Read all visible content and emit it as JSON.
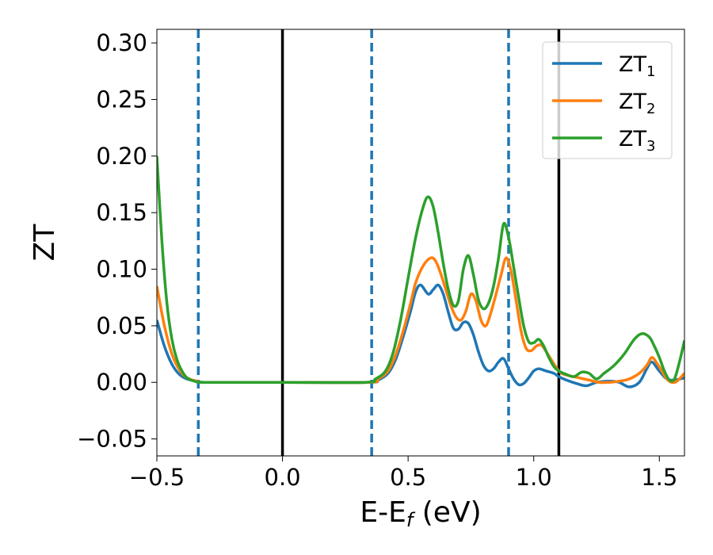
{
  "chart_data": {
    "type": "line",
    "title": "",
    "xlabel": "E-E",
    "xlabel_sub": "f",
    "xlabel_unit": " (eV)",
    "ylabel": "ZT",
    "xlim": [
      -0.5,
      1.6
    ],
    "ylim": [
      -0.065,
      0.312
    ],
    "xticks": [
      {
        "value": -0.5,
        "label": "−0.5"
      },
      {
        "value": 0.0,
        "label": "0.0"
      },
      {
        "value": 0.5,
        "label": "0.5"
      },
      {
        "value": 1.0,
        "label": "1.0"
      },
      {
        "value": 1.5,
        "label": "1.5"
      }
    ],
    "yticks": [
      {
        "value": -0.05,
        "label": "−0.05"
      },
      {
        "value": 0.0,
        "label": "0.00"
      },
      {
        "value": 0.05,
        "label": "0.05"
      },
      {
        "value": 0.1,
        "label": "0.10"
      },
      {
        "value": 0.15,
        "label": "0.15"
      },
      {
        "value": 0.2,
        "label": "0.20"
      },
      {
        "value": 0.25,
        "label": "0.25"
      },
      {
        "value": 0.3,
        "label": "0.30"
      }
    ],
    "grid": false,
    "legend_position": "top-right",
    "vertical_lines": [
      {
        "x": -0.335,
        "style": "dashed",
        "color": "#1f77b4"
      },
      {
        "x": 0.0,
        "style": "solid",
        "color": "#000000"
      },
      {
        "x": 0.355,
        "style": "dashed",
        "color": "#1f77b4"
      },
      {
        "x": 0.9,
        "style": "dashed",
        "color": "#1f77b4"
      },
      {
        "x": 1.1,
        "style": "solid",
        "color": "#000000"
      }
    ],
    "series": [
      {
        "name": "ZT",
        "name_sub": "1",
        "color": "#1f77b4",
        "points": [
          [
            -0.5,
            0.055
          ],
          [
            -0.47,
            0.032
          ],
          [
            -0.44,
            0.016
          ],
          [
            -0.41,
            0.007
          ],
          [
            -0.38,
            0.003
          ],
          [
            -0.34,
            0.001
          ],
          [
            -0.3,
            0.0
          ],
          [
            0.0,
            0.0
          ],
          [
            0.34,
            0.0
          ],
          [
            0.38,
            0.002
          ],
          [
            0.42,
            0.008
          ],
          [
            0.45,
            0.02
          ],
          [
            0.48,
            0.04
          ],
          [
            0.51,
            0.063
          ],
          [
            0.53,
            0.08
          ],
          [
            0.55,
            0.086
          ],
          [
            0.58,
            0.078
          ],
          [
            0.6,
            0.082
          ],
          [
            0.62,
            0.086
          ],
          [
            0.64,
            0.078
          ],
          [
            0.66,
            0.062
          ],
          [
            0.68,
            0.048
          ],
          [
            0.7,
            0.047
          ],
          [
            0.72,
            0.053
          ],
          [
            0.74,
            0.052
          ],
          [
            0.76,
            0.042
          ],
          [
            0.78,
            0.027
          ],
          [
            0.8,
            0.015
          ],
          [
            0.82,
            0.01
          ],
          [
            0.84,
            0.012
          ],
          [
            0.86,
            0.018
          ],
          [
            0.88,
            0.021
          ],
          [
            0.9,
            0.012
          ],
          [
            0.92,
            0.003
          ],
          [
            0.94,
            -0.002
          ],
          [
            0.96,
            -0.001
          ],
          [
            0.98,
            0.004
          ],
          [
            1.0,
            0.01
          ],
          [
            1.02,
            0.012
          ],
          [
            1.05,
            0.01
          ],
          [
            1.08,
            0.008
          ],
          [
            1.1,
            0.005
          ],
          [
            1.13,
            0.002
          ],
          [
            1.17,
            -0.001
          ],
          [
            1.21,
            -0.003
          ],
          [
            1.25,
            0.0
          ],
          [
            1.3,
            0.001
          ],
          [
            1.34,
            0.0
          ],
          [
            1.38,
            -0.004
          ],
          [
            1.42,
            0.0
          ],
          [
            1.45,
            0.012
          ],
          [
            1.47,
            0.018
          ],
          [
            1.5,
            0.01
          ],
          [
            1.53,
            0.003
          ],
          [
            1.56,
            0.002
          ],
          [
            1.6,
            0.004
          ]
        ]
      },
      {
        "name": "ZT",
        "name_sub": "2",
        "color": "#ff7f0e",
        "points": [
          [
            -0.5,
            0.085
          ],
          [
            -0.47,
            0.05
          ],
          [
            -0.44,
            0.025
          ],
          [
            -0.41,
            0.011
          ],
          [
            -0.38,
            0.004
          ],
          [
            -0.34,
            0.001
          ],
          [
            -0.3,
            0.0
          ],
          [
            0.0,
            0.0
          ],
          [
            0.34,
            0.0
          ],
          [
            0.38,
            0.003
          ],
          [
            0.42,
            0.01
          ],
          [
            0.45,
            0.024
          ],
          [
            0.48,
            0.045
          ],
          [
            0.51,
            0.07
          ],
          [
            0.53,
            0.088
          ],
          [
            0.56,
            0.103
          ],
          [
            0.59,
            0.11
          ],
          [
            0.61,
            0.107
          ],
          [
            0.63,
            0.096
          ],
          [
            0.65,
            0.082
          ],
          [
            0.67,
            0.068
          ],
          [
            0.69,
            0.058
          ],
          [
            0.71,
            0.055
          ],
          [
            0.73,
            0.063
          ],
          [
            0.75,
            0.078
          ],
          [
            0.77,
            0.072
          ],
          [
            0.79,
            0.055
          ],
          [
            0.81,
            0.05
          ],
          [
            0.83,
            0.062
          ],
          [
            0.85,
            0.078
          ],
          [
            0.87,
            0.095
          ],
          [
            0.89,
            0.11
          ],
          [
            0.91,
            0.098
          ],
          [
            0.93,
            0.072
          ],
          [
            0.95,
            0.045
          ],
          [
            0.97,
            0.03
          ],
          [
            0.99,
            0.028
          ],
          [
            1.01,
            0.032
          ],
          [
            1.03,
            0.033
          ],
          [
            1.05,
            0.027
          ],
          [
            1.07,
            0.02
          ],
          [
            1.09,
            0.013
          ],
          [
            1.11,
            0.008
          ],
          [
            1.14,
            0.006
          ],
          [
            1.18,
            0.004
          ],
          [
            1.22,
            0.002
          ],
          [
            1.26,
            0.0
          ],
          [
            1.3,
            0.0
          ],
          [
            1.34,
            0.001
          ],
          [
            1.38,
            0.003
          ],
          [
            1.42,
            0.008
          ],
          [
            1.45,
            0.015
          ],
          [
            1.47,
            0.022
          ],
          [
            1.49,
            0.017
          ],
          [
            1.51,
            0.01
          ],
          [
            1.53,
            0.003
          ],
          [
            1.55,
            0.0
          ],
          [
            1.57,
            0.001
          ],
          [
            1.6,
            0.008
          ]
        ]
      },
      {
        "name": "ZT",
        "name_sub": "3",
        "color": "#2ca02c",
        "points": [
          [
            -0.5,
            0.2
          ],
          [
            -0.48,
            0.125
          ],
          [
            -0.46,
            0.07
          ],
          [
            -0.44,
            0.038
          ],
          [
            -0.42,
            0.02
          ],
          [
            -0.4,
            0.01
          ],
          [
            -0.38,
            0.004
          ],
          [
            -0.35,
            0.001
          ],
          [
            -0.3,
            0.0
          ],
          [
            0.0,
            0.0
          ],
          [
            0.33,
            0.0
          ],
          [
            0.37,
            0.003
          ],
          [
            0.41,
            0.01
          ],
          [
            0.44,
            0.026
          ],
          [
            0.47,
            0.055
          ],
          [
            0.5,
            0.092
          ],
          [
            0.53,
            0.128
          ],
          [
            0.56,
            0.155
          ],
          [
            0.58,
            0.164
          ],
          [
            0.6,
            0.155
          ],
          [
            0.62,
            0.132
          ],
          [
            0.64,
            0.105
          ],
          [
            0.66,
            0.082
          ],
          [
            0.68,
            0.068
          ],
          [
            0.7,
            0.072
          ],
          [
            0.72,
            0.1
          ],
          [
            0.74,
            0.112
          ],
          [
            0.76,
            0.095
          ],
          [
            0.78,
            0.073
          ],
          [
            0.8,
            0.065
          ],
          [
            0.82,
            0.07
          ],
          [
            0.84,
            0.085
          ],
          [
            0.86,
            0.11
          ],
          [
            0.88,
            0.14
          ],
          [
            0.9,
            0.128
          ],
          [
            0.92,
            0.102
          ],
          [
            0.94,
            0.075
          ],
          [
            0.96,
            0.05
          ],
          [
            0.98,
            0.036
          ],
          [
            1.0,
            0.035
          ],
          [
            1.02,
            0.038
          ],
          [
            1.04,
            0.032
          ],
          [
            1.06,
            0.022
          ],
          [
            1.08,
            0.014
          ],
          [
            1.1,
            0.01
          ],
          [
            1.13,
            0.007
          ],
          [
            1.16,
            0.005
          ],
          [
            1.19,
            0.009
          ],
          [
            1.22,
            0.008
          ],
          [
            1.25,
            0.003
          ],
          [
            1.28,
            0.008
          ],
          [
            1.32,
            0.015
          ],
          [
            1.36,
            0.025
          ],
          [
            1.4,
            0.038
          ],
          [
            1.43,
            0.043
          ],
          [
            1.46,
            0.04
          ],
          [
            1.48,
            0.032
          ],
          [
            1.5,
            0.022
          ],
          [
            1.52,
            0.01
          ],
          [
            1.54,
            0.002
          ],
          [
            1.56,
            0.003
          ],
          [
            1.58,
            0.018
          ],
          [
            1.6,
            0.037
          ]
        ]
      }
    ]
  }
}
